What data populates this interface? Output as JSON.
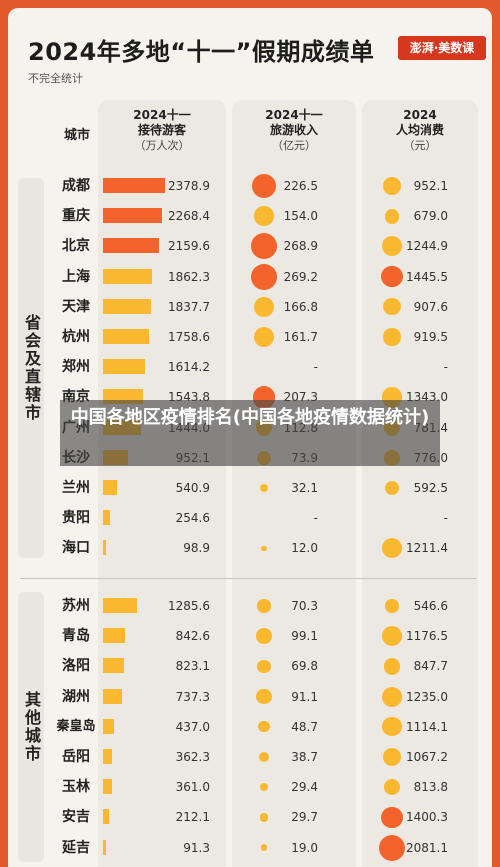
{
  "title": "2024年多地“十一”假期成绩单",
  "subtitle": "不完全统计",
  "brand": "澎湃·美数课",
  "headers": {
    "city": "城市",
    "arrivals": [
      "2024十一",
      "接待游客",
      "（万人次）"
    ],
    "revenue": [
      "2024十一",
      "旅游收入",
      "（亿元）"
    ],
    "per_capita": [
      "2024",
      "人均消费",
      "（元）"
    ]
  },
  "group_labels": [
    "省会及直辖市",
    "其他城市"
  ],
  "overlay": "中国各地区疫情排名(中国各地疫情数据统计)",
  "colors": {
    "bar_high": "#f2642b",
    "bar_mid": "#f9b82f",
    "dot_high": "#f2642b",
    "dot_mid": "#f9b82f",
    "bg": "#e25a2b"
  },
  "chart_data": {
    "type": "table",
    "columns": [
      "城市",
      "2024十一接待游客（万人次）",
      "2024十一旅游收入（亿元）",
      "2024人均消费（元）"
    ],
    "groups": [
      {
        "name": "省会及直辖市",
        "rows": [
          {
            "city": "成都",
            "arrivals": 2378.9,
            "revenue": 226.5,
            "per_capita": 952.1
          },
          {
            "city": "重庆",
            "arrivals": 2268.4,
            "revenue": 154.0,
            "per_capita": 679.0
          },
          {
            "city": "北京",
            "arrivals": 2159.6,
            "revenue": 268.9,
            "per_capita": 1244.9
          },
          {
            "city": "上海",
            "arrivals": 1862.3,
            "revenue": 269.2,
            "per_capita": 1445.5
          },
          {
            "city": "天津",
            "arrivals": 1837.7,
            "revenue": 166.8,
            "per_capita": 907.6
          },
          {
            "city": "杭州",
            "arrivals": 1758.6,
            "revenue": 161.7,
            "per_capita": 919.5
          },
          {
            "city": "郑州",
            "arrivals": 1614.2,
            "revenue": null,
            "per_capita": null
          },
          {
            "city": "南京",
            "arrivals": 1543.8,
            "revenue": 207.3,
            "per_capita": 1343.0
          },
          {
            "city": "广州",
            "arrivals": 1444.0,
            "revenue": 112.8,
            "per_capita": 781.4
          },
          {
            "city": "长沙",
            "arrivals": 952.1,
            "revenue": 73.9,
            "per_capita": 776.0
          },
          {
            "city": "兰州",
            "arrivals": 540.9,
            "revenue": 32.1,
            "per_capita": 592.5
          },
          {
            "city": "贵阳",
            "arrivals": 254.6,
            "revenue": null,
            "per_capita": null
          },
          {
            "city": "海口",
            "arrivals": 98.9,
            "revenue": 12.0,
            "per_capita": 1211.4
          }
        ]
      },
      {
        "name": "其他城市",
        "rows": [
          {
            "city": "苏州",
            "arrivals": 1285.6,
            "revenue": 70.3,
            "per_capita": 546.6
          },
          {
            "city": "青岛",
            "arrivals": 842.6,
            "revenue": 99.1,
            "per_capita": 1176.5
          },
          {
            "city": "洛阳",
            "arrivals": 823.1,
            "revenue": 69.8,
            "per_capita": 847.7
          },
          {
            "city": "湖州",
            "arrivals": 737.3,
            "revenue": 91.1,
            "per_capita": 1235.0
          },
          {
            "city": "秦皇岛",
            "arrivals": 437.0,
            "revenue": 48.7,
            "per_capita": 1114.1
          },
          {
            "city": "岳阳",
            "arrivals": 362.3,
            "revenue": 38.7,
            "per_capita": 1067.2
          },
          {
            "city": "玉林",
            "arrivals": 361.0,
            "revenue": 29.4,
            "per_capita": 813.8
          },
          {
            "city": "安吉",
            "arrivals": 212.1,
            "revenue": 29.7,
            "per_capita": 1400.3
          },
          {
            "city": "延吉",
            "arrivals": 91.3,
            "revenue": 19.0,
            "per_capita": 2081.1
          }
        ]
      }
    ]
  }
}
